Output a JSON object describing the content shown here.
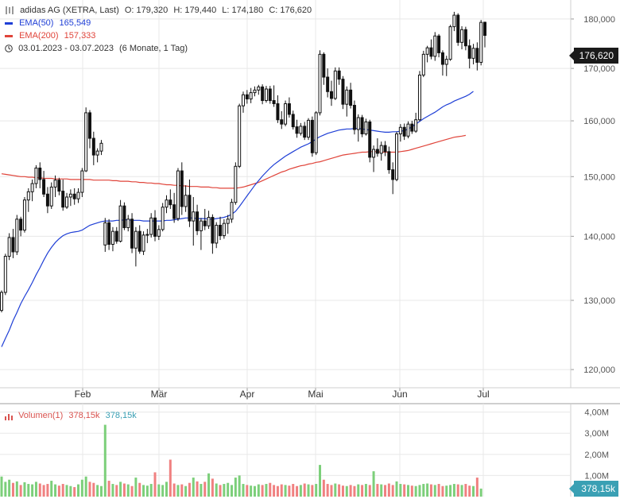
{
  "header": {
    "instrument": "adidas AG (XETRA, Last)",
    "open_label": "O:",
    "open": "179,320",
    "high_label": "H:",
    "high": "179,440",
    "low_label": "L:",
    "low": "174,180",
    "close_label": "C:",
    "close": "176,620",
    "ema50_label": "EMA(50)",
    "ema50_value": "165,549",
    "ema200_label": "EMA(200)",
    "ema200_value": "157,333",
    "range": "03.01.2023 - 03.07.2023",
    "period": "(6 Monate, 1 Tag)"
  },
  "colors": {
    "up": "#2a2a2a",
    "down": "#111111",
    "ema50": "#1f3fd6",
    "ema200": "#e0443a",
    "vol_up": "#7ccf7a",
    "vol_down": "#f08080",
    "vol_tag": "#3aa0b4",
    "grid": "#e8e8e8"
  },
  "volume_panel": {
    "label": "Volumen(1)",
    "value_red": "378,15k",
    "value_teal": "378,15k",
    "tag": "378,15k",
    "y_ticks": [
      "4,00M",
      "3,00M",
      "2,00M",
      "1,00M"
    ]
  },
  "price_tag": "176,620",
  "chart_data": {
    "type": "candlestick",
    "x_ticks": [
      "Feb",
      "Mär",
      "Apr",
      "Mai",
      "Jun",
      "Jul"
    ],
    "y_ticks": [
      "180,000",
      "170,000",
      "160,000",
      "150,000",
      "140,000",
      "130,000",
      "120,000"
    ],
    "ylim": [
      117.5,
      184.0
    ],
    "y_scale": "log",
    "grid": true,
    "candles": [
      [
        128.5,
        131.5,
        128.2,
        131.2
      ],
      [
        131.2,
        137.2,
        130.8,
        136.8
      ],
      [
        136.8,
        140.5,
        136.2,
        139.8
      ],
      [
        139.8,
        141.2,
        136.5,
        137.5
      ],
      [
        137.5,
        143.5,
        137.0,
        142.8
      ],
      [
        142.8,
        143.2,
        140.0,
        141.0
      ],
      [
        141.0,
        146.5,
        140.6,
        146.0
      ],
      [
        146.0,
        148.0,
        144.0,
        147.4
      ],
      [
        147.4,
        149.5,
        145.8,
        148.8
      ],
      [
        148.8,
        152.0,
        148.0,
        151.5
      ],
      [
        151.5,
        152.5,
        148.0,
        149.5
      ],
      [
        149.5,
        151.0,
        146.5,
        147.0
      ],
      [
        147.0,
        148.2,
        143.8,
        145.0
      ],
      [
        145.0,
        149.0,
        144.5,
        148.2
      ],
      [
        148.2,
        150.2,
        146.5,
        149.4
      ],
      [
        149.4,
        149.8,
        146.8,
        147.5
      ],
      [
        147.5,
        149.5,
        144.2,
        144.8
      ],
      [
        144.8,
        147.2,
        144.5,
        146.5
      ],
      [
        146.5,
        147.8,
        145.0,
        147.0
      ],
      [
        147.0,
        148.0,
        145.2,
        146.2
      ],
      [
        146.2,
        148.0,
        145.5,
        147.3
      ],
      [
        147.3,
        151.5,
        146.5,
        151.0
      ],
      [
        151.0,
        162.5,
        150.8,
        161.5
      ],
      [
        161.5,
        162.0,
        155.0,
        156.8
      ],
      [
        156.8,
        158.0,
        152.0,
        153.8
      ],
      [
        153.8,
        155.0,
        152.5,
        154.5
      ],
      [
        154.5,
        156.5,
        153.8,
        155.9
      ],
      [
        138.6,
        143.0,
        137.5,
        142.2
      ],
      [
        142.2,
        142.8,
        137.8,
        138.7
      ],
      [
        138.7,
        141.5,
        137.6,
        140.8
      ],
      [
        140.8,
        141.5,
        138.8,
        139.2
      ],
      [
        139.2,
        146.0,
        139.0,
        145.0
      ],
      [
        145.0,
        145.6,
        141.0,
        141.4
      ],
      [
        141.4,
        143.5,
        140.8,
        142.8
      ],
      [
        142.8,
        143.8,
        137.3,
        138.1
      ],
      [
        138.1,
        141.5,
        135.2,
        140.8
      ],
      [
        140.8,
        141.8,
        137.2,
        137.6
      ],
      [
        137.6,
        140.8,
        137.0,
        140.2
      ],
      [
        140.2,
        141.2,
        138.9,
        140.3
      ],
      [
        140.3,
        143.8,
        139.8,
        143.0
      ],
      [
        143.0,
        144.3,
        139.2,
        140.0
      ],
      [
        140.0,
        141.8,
        139.4,
        141.1
      ],
      [
        141.1,
        145.5,
        140.8,
        144.8
      ],
      [
        144.8,
        146.8,
        143.8,
        146.0
      ],
      [
        146.0,
        147.8,
        144.5,
        145.2
      ],
      [
        145.2,
        147.2,
        142.2,
        142.9
      ],
      [
        142.9,
        151.5,
        142.5,
        151.0
      ],
      [
        151.0,
        152.5,
        143.5,
        144.9
      ],
      [
        144.9,
        148.5,
        144.0,
        146.8
      ],
      [
        146.8,
        149.5,
        141.5,
        142.5
      ],
      [
        142.5,
        146.5,
        138.5,
        144.0
      ],
      [
        144.0,
        145.2,
        140.2,
        140.9
      ],
      [
        140.9,
        143.0,
        137.8,
        142.5
      ],
      [
        142.5,
        144.5,
        141.0,
        141.7
      ],
      [
        141.7,
        144.2,
        141.2,
        143.1
      ],
      [
        143.1,
        143.6,
        137.2,
        138.9
      ],
      [
        138.9,
        142.3,
        138.1,
        141.8
      ],
      [
        141.8,
        143.2,
        139.4,
        140.1
      ],
      [
        140.1,
        142.8,
        139.6,
        142.1
      ],
      [
        142.1,
        143.5,
        140.4,
        142.8
      ],
      [
        142.8,
        146.2,
        142.2,
        145.6
      ],
      [
        145.6,
        152.5,
        145.2,
        151.8
      ],
      [
        151.8,
        163.2,
        151.5,
        162.8
      ],
      [
        162.8,
        165.5,
        161.5,
        164.9
      ],
      [
        164.9,
        165.8,
        163.2,
        164.1
      ],
      [
        164.1,
        166.2,
        163.3,
        165.3
      ],
      [
        165.3,
        166.5,
        164.6,
        165.8
      ],
      [
        165.8,
        166.8,
        164.9,
        166.4
      ],
      [
        166.4,
        166.9,
        163.1,
        163.8
      ],
      [
        163.8,
        166.6,
        163.4,
        166.0
      ],
      [
        166.0,
        166.6,
        163.2,
        163.8
      ],
      [
        163.8,
        166.7,
        162.6,
        163.2
      ],
      [
        163.2,
        164.8,
        159.6,
        160.2
      ],
      [
        160.2,
        161.8,
        158.5,
        159.4
      ],
      [
        159.4,
        163.8,
        159.0,
        163.2
      ],
      [
        163.2,
        164.4,
        160.6,
        161.2
      ],
      [
        161.2,
        161.9,
        158.4,
        158.9
      ],
      [
        158.9,
        160.2,
        156.9,
        157.7
      ],
      [
        157.7,
        159.6,
        157.3,
        159.0
      ],
      [
        159.0,
        159.8,
        156.5,
        157.0
      ],
      [
        157.0,
        160.5,
        156.5,
        160.1
      ],
      [
        160.1,
        160.8,
        153.5,
        154.2
      ],
      [
        154.2,
        161.8,
        153.8,
        161.5
      ],
      [
        161.5,
        173.6,
        161.0,
        172.8
      ],
      [
        172.8,
        173.2,
        166.8,
        168.3
      ],
      [
        168.3,
        170.0,
        164.4,
        165.5
      ],
      [
        165.5,
        167.6,
        162.8,
        164.2
      ],
      [
        164.2,
        170.2,
        163.9,
        169.5
      ],
      [
        169.5,
        170.2,
        166.8,
        167.9
      ],
      [
        167.9,
        168.5,
        162.2,
        163.1
      ],
      [
        163.1,
        166.5,
        160.8,
        165.8
      ],
      [
        165.8,
        167.2,
        162.3,
        162.9
      ],
      [
        162.9,
        163.8,
        157.5,
        158.4
      ],
      [
        158.4,
        161.2,
        156.2,
        160.6
      ],
      [
        160.6,
        161.1,
        157.0,
        157.6
      ],
      [
        157.6,
        160.4,
        157.3,
        159.8
      ],
      [
        159.8,
        160.2,
        152.5,
        153.4
      ],
      [
        153.4,
        155.5,
        150.8,
        154.8
      ],
      [
        154.8,
        156.8,
        153.5,
        154.1
      ],
      [
        154.1,
        156.2,
        152.8,
        155.5
      ],
      [
        155.5,
        156.3,
        153.6,
        154.4
      ],
      [
        154.4,
        155.3,
        150.5,
        151.2
      ],
      [
        151.2,
        152.5,
        147.0,
        149.5
      ],
      [
        149.5,
        158.0,
        149.2,
        157.6
      ],
      [
        157.6,
        159.4,
        156.2,
        158.8
      ],
      [
        158.8,
        159.5,
        156.5,
        157.2
      ],
      [
        157.2,
        159.9,
        156.8,
        159.4
      ],
      [
        159.4,
        160.0,
        157.6,
        158.1
      ],
      [
        158.1,
        161.5,
        157.8,
        160.2
      ],
      [
        160.2,
        169.5,
        159.9,
        168.7
      ],
      [
        168.7,
        173.5,
        168.3,
        172.8
      ],
      [
        172.8,
        174.5,
        171.2,
        174.1
      ],
      [
        174.1,
        175.8,
        171.8,
        172.4
      ],
      [
        172.4,
        177.3,
        171.5,
        176.5
      ],
      [
        176.5,
        176.9,
        172.2,
        173.1
      ],
      [
        173.1,
        173.6,
        168.6,
        170.8
      ],
      [
        170.8,
        172.5,
        168.5,
        171.8
      ],
      [
        171.8,
        178.8,
        171.5,
        178.4
      ],
      [
        178.4,
        181.5,
        177.5,
        180.8
      ],
      [
        180.8,
        181.2,
        174.5,
        175.2
      ],
      [
        175.2,
        178.5,
        173.8,
        177.8
      ],
      [
        177.8,
        178.4,
        173.6,
        174.5
      ],
      [
        174.5,
        175.8,
        170.0,
        172.0
      ],
      [
        172.0,
        174.9,
        170.8,
        174.0
      ],
      [
        174.0,
        175.2,
        169.6,
        171.2
      ],
      [
        171.2,
        179.8,
        170.6,
        179.3
      ],
      [
        179.32,
        179.44,
        174.18,
        176.62
      ]
    ],
    "ema50": [
      123.2,
      124.4,
      125.6,
      127.0,
      128.2,
      129.5,
      130.6,
      131.6,
      132.7,
      133.9,
      135.0,
      136.2,
      137.3,
      138.2,
      139.0,
      139.6,
      140.1,
      140.4,
      140.6,
      140.7,
      140.8,
      141.0,
      141.4,
      141.8,
      142.0,
      142.2,
      142.4,
      142.5,
      142.5,
      142.5,
      142.6,
      142.6,
      142.7,
      142.7,
      142.6,
      142.6,
      142.6,
      142.5,
      142.5,
      142.5,
      142.5,
      142.5,
      142.5,
      142.6,
      142.6,
      142.7,
      142.8,
      142.9,
      143.0,
      143.0,
      143.0,
      142.9,
      142.9,
      142.9,
      142.8,
      142.8,
      142.9,
      143.0,
      143.1,
      143.3,
      143.6,
      144.1,
      144.9,
      145.8,
      146.7,
      147.6,
      148.5,
      149.3,
      150.1,
      150.8,
      151.5,
      152.1,
      152.6,
      153.1,
      153.6,
      154.0,
      154.4,
      154.8,
      155.2,
      155.5,
      155.8,
      156.2,
      156.7,
      157.1,
      157.4,
      157.7,
      157.9,
      158.1,
      158.3,
      158.4,
      158.5,
      158.5,
      158.6,
      158.6,
      158.5,
      158.4,
      158.3,
      158.2,
      158.1,
      158.0,
      157.9,
      157.9,
      158.0,
      158.0,
      158.1,
      158.2,
      158.5,
      158.9,
      159.4,
      159.9,
      160.4,
      160.8,
      161.2,
      161.6,
      162.1,
      162.6,
      163.0,
      163.3,
      163.7,
      164.0,
      164.3,
      164.6,
      165.0,
      165.55
    ],
    "ema200": [
      150.5,
      150.4,
      150.3,
      150.2,
      150.1,
      150.0,
      150.0,
      149.9,
      149.9,
      149.8,
      149.8,
      149.7,
      149.7,
      149.7,
      149.6,
      149.6,
      149.6,
      149.6,
      149.5,
      149.5,
      149.5,
      149.5,
      149.5,
      149.5,
      149.4,
      149.4,
      149.4,
      149.4,
      149.4,
      149.3,
      149.3,
      149.2,
      149.2,
      149.2,
      149.1,
      149.1,
      149.0,
      149.0,
      148.9,
      148.9,
      148.8,
      148.8,
      148.7,
      148.6,
      148.6,
      148.5,
      148.5,
      148.4,
      148.4,
      148.3,
      148.3,
      148.3,
      148.2,
      148.2,
      148.2,
      148.1,
      148.1,
      148.0,
      148.0,
      148.0,
      148.0,
      148.0,
      148.1,
      148.2,
      148.4,
      148.6,
      148.8,
      149.0,
      149.3,
      149.6,
      149.9,
      150.2,
      150.5,
      150.8,
      151.0,
      151.3,
      151.5,
      151.7,
      151.9,
      152.0,
      152.2,
      152.3,
      152.5,
      152.6,
      152.8,
      153.0,
      153.2,
      153.4,
      153.6,
      153.8,
      153.9,
      154.0,
      154.1,
      154.2,
      154.3,
      154.3,
      154.4,
      154.4,
      154.4,
      154.3,
      154.3,
      154.3,
      154.3,
      154.3,
      154.4,
      154.5,
      154.6,
      154.8,
      155.0,
      155.2,
      155.4,
      155.6,
      155.8,
      156.0,
      156.2,
      156.4,
      156.6,
      156.8,
      157.0,
      157.1,
      157.2,
      157.33
    ],
    "volume_ylim": [
      0,
      4.4
    ],
    "volume": [
      0.95,
      0.7,
      0.8,
      0.65,
      0.72,
      0.55,
      0.68,
      0.6,
      0.58,
      0.7,
      0.62,
      0.55,
      0.6,
      0.75,
      0.58,
      0.52,
      0.6,
      0.55,
      0.5,
      0.45,
      0.58,
      0.8,
      0.95,
      0.7,
      0.65,
      0.55,
      0.5,
      3.4,
      0.75,
      0.6,
      0.55,
      0.7,
      0.62,
      0.58,
      0.5,
      0.9,
      0.65,
      0.55,
      0.52,
      0.6,
      1.15,
      0.58,
      0.55,
      0.7,
      1.75,
      0.62,
      0.55,
      0.58,
      0.5,
      0.65,
      0.9,
      0.72,
      0.6,
      0.7,
      1.1,
      0.85,
      0.62,
      0.55,
      0.6,
      0.65,
      0.55,
      0.9,
      1.0,
      0.6,
      0.55,
      0.52,
      0.5,
      0.58,
      0.55,
      0.6,
      0.65,
      0.55,
      0.5,
      0.58,
      0.55,
      0.52,
      0.6,
      0.5,
      0.55,
      0.62,
      0.58,
      0.55,
      0.6,
      1.5,
      0.8,
      0.6,
      0.55,
      0.62,
      0.58,
      0.52,
      0.5,
      0.55,
      0.5,
      0.58,
      0.55,
      0.6,
      0.55,
      1.2,
      0.6,
      0.58,
      0.55,
      0.62,
      0.55,
      0.72,
      0.6,
      0.58,
      0.55,
      0.52,
      0.5,
      0.55,
      0.6,
      0.62,
      0.58,
      0.55,
      0.6,
      0.5,
      0.52,
      0.55,
      0.6,
      0.58,
      0.55,
      0.6,
      0.52,
      0.5,
      0.9,
      0.38
    ]
  }
}
